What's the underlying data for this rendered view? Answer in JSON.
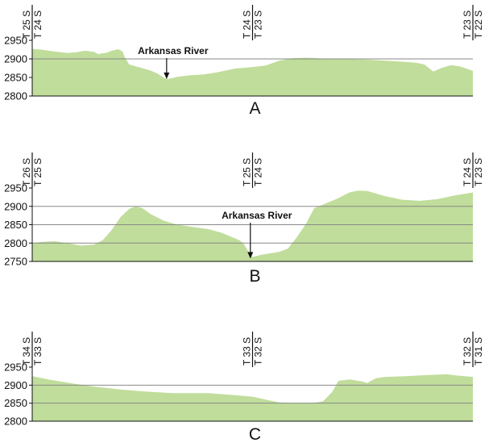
{
  "colors": {
    "terrain_fill": "#c0dd9b",
    "gridline": "#888888",
    "axis": "#111111",
    "text": "#111111"
  },
  "panels": [
    {
      "label": "A",
      "y_ticks": [
        "2950",
        "2900",
        "2850",
        "2800"
      ],
      "y_values": [
        2950,
        2900,
        2850,
        2800
      ],
      "gridlines": [
        2900
      ],
      "ylim": [
        2800,
        2950
      ],
      "townships": [
        {
          "position": 0.0,
          "top": "T 25 S",
          "bottom": "T 24 S"
        },
        {
          "position": 0.5,
          "top": "T 24 S",
          "bottom": "T 23 S"
        },
        {
          "position": 1.0,
          "top": "T 23 S",
          "bottom": "T 22 S"
        }
      ],
      "annotation": {
        "text": "Arkansas River",
        "x": 0.305,
        "value": 2846
      },
      "profile": [
        [
          0,
          2927
        ],
        [
          0.02,
          2925
        ],
        [
          0.05,
          2920
        ],
        [
          0.08,
          2916
        ],
        [
          0.1,
          2918
        ],
        [
          0.12,
          2922
        ],
        [
          0.14,
          2919
        ],
        [
          0.15,
          2913
        ],
        [
          0.17,
          2917
        ],
        [
          0.18,
          2922
        ],
        [
          0.195,
          2926
        ],
        [
          0.205,
          2920
        ],
        [
          0.21,
          2905
        ],
        [
          0.22,
          2885
        ],
        [
          0.25,
          2875
        ],
        [
          0.27,
          2868
        ],
        [
          0.285,
          2860
        ],
        [
          0.3,
          2848
        ],
        [
          0.31,
          2846
        ],
        [
          0.33,
          2852
        ],
        [
          0.36,
          2856
        ],
        [
          0.39,
          2858
        ],
        [
          0.42,
          2864
        ],
        [
          0.46,
          2874
        ],
        [
          0.5,
          2878
        ],
        [
          0.53,
          2882
        ],
        [
          0.56,
          2895
        ],
        [
          0.59,
          2902
        ],
        [
          0.62,
          2903
        ],
        [
          0.68,
          2900
        ],
        [
          0.76,
          2898
        ],
        [
          0.82,
          2894
        ],
        [
          0.87,
          2890
        ],
        [
          0.89,
          2885
        ],
        [
          0.91,
          2866
        ],
        [
          0.93,
          2876
        ],
        [
          0.95,
          2883
        ],
        [
          0.97,
          2880
        ],
        [
          1.0,
          2868
        ]
      ]
    },
    {
      "label": "B",
      "y_ticks": [
        "2950",
        "2900",
        "2850",
        "2800",
        "2750"
      ],
      "y_values": [
        2950,
        2900,
        2850,
        2800,
        2750
      ],
      "gridlines": [
        2900,
        2850,
        2800
      ],
      "ylim": [
        2750,
        2950
      ],
      "townships": [
        {
          "position": 0.0,
          "top": "T 26 S",
          "bottom": "T 25 S"
        },
        {
          "position": 0.5,
          "top": "T 25 S",
          "bottom": "T 24 S"
        },
        {
          "position": 1.0,
          "top": "T 24 S",
          "bottom": "T 23 S"
        }
      ],
      "annotation": {
        "text": "Arkansas River",
        "x": 0.495,
        "value": 2758
      },
      "profile": [
        [
          0,
          2800
        ],
        [
          0.02,
          2803
        ],
        [
          0.05,
          2805
        ],
        [
          0.08,
          2800
        ],
        [
          0.11,
          2793
        ],
        [
          0.14,
          2796
        ],
        [
          0.16,
          2808
        ],
        [
          0.18,
          2835
        ],
        [
          0.2,
          2870
        ],
        [
          0.22,
          2893
        ],
        [
          0.235,
          2900
        ],
        [
          0.25,
          2895
        ],
        [
          0.27,
          2878
        ],
        [
          0.3,
          2860
        ],
        [
          0.33,
          2850
        ],
        [
          0.37,
          2843
        ],
        [
          0.4,
          2838
        ],
        [
          0.43,
          2828
        ],
        [
          0.45,
          2818
        ],
        [
          0.47,
          2808
        ],
        [
          0.48,
          2798
        ],
        [
          0.49,
          2778
        ],
        [
          0.5,
          2762
        ],
        [
          0.52,
          2768
        ],
        [
          0.56,
          2776
        ],
        [
          0.58,
          2785
        ],
        [
          0.6,
          2815
        ],
        [
          0.62,
          2850
        ],
        [
          0.64,
          2895
        ],
        [
          0.66,
          2905
        ],
        [
          0.69,
          2920
        ],
        [
          0.72,
          2938
        ],
        [
          0.74,
          2943
        ],
        [
          0.76,
          2942
        ],
        [
          0.8,
          2928
        ],
        [
          0.84,
          2918
        ],
        [
          0.88,
          2915
        ],
        [
          0.92,
          2920
        ],
        [
          0.96,
          2930
        ],
        [
          1.0,
          2938
        ]
      ]
    },
    {
      "label": "C",
      "y_ticks": [
        "2950",
        "2900",
        "2850",
        "2800"
      ],
      "y_values": [
        2950,
        2900,
        2850,
        2800
      ],
      "gridlines": [
        2900,
        2850
      ],
      "ylim": [
        2800,
        2950
      ],
      "townships": [
        {
          "position": 0.0,
          "top": "T 34 S",
          "bottom": "T 33 S"
        },
        {
          "position": 0.5,
          "top": "T 33 S",
          "bottom": "T 32 S"
        },
        {
          "position": 1.0,
          "top": "T 32 S",
          "bottom": "T 31 S"
        }
      ],
      "profile": [
        [
          0,
          2925
        ],
        [
          0.04,
          2915
        ],
        [
          0.09,
          2905
        ],
        [
          0.14,
          2896
        ],
        [
          0.2,
          2888
        ],
        [
          0.26,
          2882
        ],
        [
          0.32,
          2878
        ],
        [
          0.4,
          2878
        ],
        [
          0.46,
          2872
        ],
        [
          0.5,
          2868
        ],
        [
          0.53,
          2860
        ],
        [
          0.56,
          2852
        ],
        [
          0.6,
          2850
        ],
        [
          0.64,
          2851
        ],
        [
          0.66,
          2855
        ],
        [
          0.68,
          2880
        ],
        [
          0.695,
          2912
        ],
        [
          0.72,
          2916
        ],
        [
          0.75,
          2910
        ],
        [
          0.76,
          2906
        ],
        [
          0.78,
          2919
        ],
        [
          0.8,
          2923
        ],
        [
          0.85,
          2925
        ],
        [
          0.9,
          2928
        ],
        [
          0.94,
          2930
        ],
        [
          0.97,
          2926
        ],
        [
          1.0,
          2923
        ]
      ]
    }
  ]
}
